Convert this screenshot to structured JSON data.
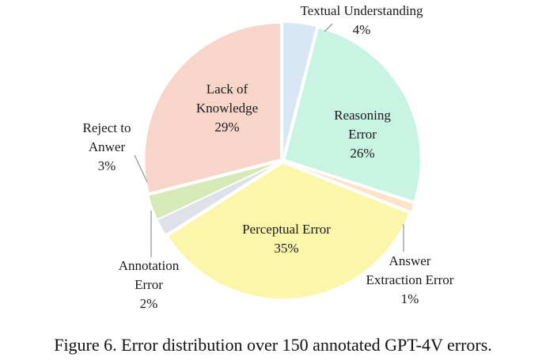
{
  "chart_data": {
    "type": "pie",
    "caption": "Figure 6. Error distribution over 150 annotated GPT-4V errors.",
    "categories": [
      "Textual Understanding",
      "Reasoning\nError",
      "Answer\nExtraction Error",
      "Perceptual Error",
      "Annotation\nError",
      "Reject to\nAnwer",
      "Lack of\nKnowledge"
    ],
    "values": [
      4,
      26,
      1,
      35,
      2,
      3,
      29
    ],
    "value_labels": [
      "4%",
      "26%",
      "1%",
      "35%",
      "2%",
      "3%",
      "29%"
    ],
    "colors": [
      "#d7e7f6",
      "#c9f3e3",
      "#fde4c9",
      "#fbf6aa",
      "#dee1e9",
      "#d6e9b6",
      "#f7d5c9"
    ]
  }
}
